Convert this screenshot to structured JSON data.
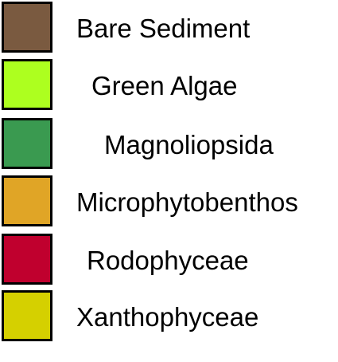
{
  "legend": {
    "items": [
      {
        "label": "Bare Sediment",
        "color": "#7a5a40"
      },
      {
        "label": "Green Algae",
        "color": "#adff1f"
      },
      {
        "label": "Magnoliopsida",
        "color": "#3a9a50"
      },
      {
        "label": "Microphytobenthos",
        "color": "#e0a526"
      },
      {
        "label": "Rodophyceae",
        "color": "#c0002e"
      },
      {
        "label": "Xanthophyceae",
        "color": "#d5d000"
      }
    ]
  }
}
